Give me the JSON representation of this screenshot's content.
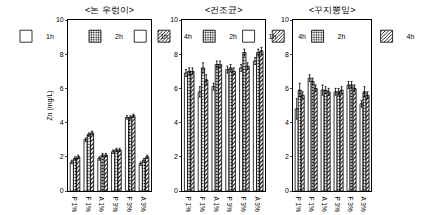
{
  "chart_data": [
    {
      "type": "bar",
      "title": "<논 우렁이>",
      "ylabel": "Zn (mg/L)",
      "categories": [
        "P 1%",
        "F 1%",
        "A 1%",
        "P 3%",
        "F 3%",
        "A 3%"
      ],
      "series": [
        {
          "name": "1h",
          "color": "#ffffff",
          "marker": "blank",
          "values": [
            1.7,
            3.0,
            1.9,
            2.3,
            4.3,
            1.6
          ],
          "errors": [
            0.1,
            0.1,
            0.1,
            0.1,
            0.1,
            0.1
          ]
        },
        {
          "name": "2h",
          "color": "#ffffff",
          "marker": "dots",
          "values": [
            1.9,
            3.3,
            2.1,
            2.4,
            4.3,
            1.8
          ],
          "errors": [
            0.1,
            0.1,
            0.1,
            0.1,
            0.1,
            0.1
          ]
        },
        {
          "name": "4h",
          "color": "#ffffff",
          "marker": "hatch",
          "values": [
            2.0,
            3.4,
            2.1,
            2.4,
            4.4,
            2.0
          ],
          "errors": [
            0.1,
            0.1,
            0.1,
            0.1,
            0.1,
            0.1
          ]
        }
      ],
      "ylim": [
        0,
        10
      ],
      "yticks": [
        0,
        2,
        4,
        6,
        8,
        10
      ],
      "legend": "top"
    },
    {
      "type": "bar",
      "title": "<건조균>",
      "categories": [
        "P 1%",
        "F 1%",
        "A 1%",
        "P 3%",
        "F 3%",
        "A 3%"
      ],
      "series": [
        {
          "name": "1h",
          "color": "#ffffff",
          "marker": "blank",
          "values": [
            6.9,
            5.8,
            6.1,
            7.1,
            7.2,
            7.6
          ],
          "errors": [
            0.2,
            0.3,
            0.2,
            0.2,
            0.2,
            0.2
          ]
        },
        {
          "name": "2h",
          "color": "#ffffff",
          "marker": "dots",
          "values": [
            7.0,
            7.2,
            7.4,
            7.2,
            8.1,
            8.1
          ],
          "errors": [
            0.2,
            0.3,
            0.2,
            0.2,
            0.2,
            0.2
          ]
        },
        {
          "name": "4h",
          "color": "#ffffff",
          "marker": "hatch",
          "values": [
            7.0,
            6.5,
            7.4,
            7.0,
            7.3,
            8.2
          ],
          "errors": [
            0.2,
            0.3,
            0.2,
            0.2,
            0.2,
            0.2
          ]
        }
      ],
      "ylim": [
        0,
        10
      ],
      "yticks": [
        0,
        2,
        4,
        6,
        8,
        10
      ],
      "legend": "top"
    },
    {
      "type": "bar",
      "title": "<꾸지뽕잎>",
      "categories": [
        "P 1%",
        "F 1%",
        "A 1%",
        "P 3%",
        "F 3%",
        "A 3%"
      ],
      "series": [
        {
          "name": "1h",
          "color": "#ffffff",
          "marker": "blank",
          "values": [
            4.8,
            6.6,
            5.9,
            5.8,
            6.2,
            5.1
          ],
          "errors": [
            0.6,
            0.2,
            0.3,
            0.2,
            0.2,
            0.2
          ]
        },
        {
          "name": "2h",
          "color": "#ffffff",
          "marker": "dots",
          "values": [
            5.9,
            6.4,
            5.9,
            5.8,
            6.2,
            5.8
          ],
          "errors": [
            0.4,
            0.2,
            0.2,
            0.2,
            0.2,
            0.3
          ]
        },
        {
          "name": "4h",
          "color": "#ffffff",
          "marker": "hatch",
          "values": [
            5.6,
            6.0,
            5.8,
            5.9,
            6.0,
            5.6
          ],
          "errors": [
            0.2,
            0.2,
            0.2,
            0.2,
            0.2,
            0.2
          ]
        }
      ],
      "ylim": [
        0,
        10
      ],
      "yticks": [
        0,
        2,
        4,
        6,
        8,
        10
      ],
      "legend": "top"
    }
  ]
}
